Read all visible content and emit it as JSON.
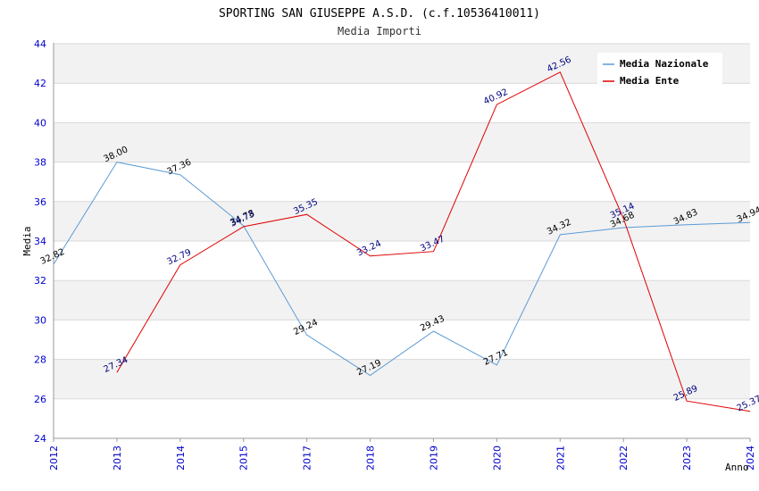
{
  "colors": {
    "nazionale": "#5b9bd5",
    "ente": "#e00000",
    "label_nazionale": "#000000",
    "label_ente": "#000080",
    "band": "#f2f2f2",
    "grid": "#d9d9d9",
    "tick": "#0000cc"
  },
  "chart_data": {
    "type": "line",
    "title": "SPORTING SAN GIUSEPPE A.S.D. (c.f.10536410011)",
    "subtitle": "Media Importi",
    "xlabel": "Anno",
    "ylabel": "Media",
    "ylim": [
      24,
      44
    ],
    "yticks": [
      24,
      26,
      28,
      30,
      32,
      34,
      36,
      38,
      40,
      42,
      44
    ],
    "categories": [
      "2012",
      "2013",
      "2014",
      "2015",
      "2017",
      "2018",
      "2019",
      "2020",
      "2021",
      "2022",
      "2023",
      "2024"
    ],
    "grid": true,
    "legend": "top-right",
    "series": [
      {
        "name": "Media Nazionale",
        "values": [
          32.82,
          38.0,
          37.36,
          34.78,
          29.24,
          27.19,
          29.43,
          27.71,
          34.32,
          34.68,
          34.83,
          34.94
        ],
        "labels": [
          "32.82",
          "38.00",
          "37.36",
          "34.78",
          "29.24",
          "27.19",
          "29.43",
          "27.71",
          "34.32",
          "34.68",
          "34.83",
          "34.94"
        ]
      },
      {
        "name": "Media Ente",
        "values": [
          null,
          27.34,
          32.79,
          34.73,
          35.35,
          33.24,
          33.47,
          40.92,
          42.56,
          35.14,
          25.89,
          25.37
        ],
        "labels": [
          null,
          "27.34",
          "32.79",
          "34.73",
          "35.35",
          "33.24",
          "33.47",
          "40.92",
          "42.56",
          "35.14",
          "25.89",
          "25.37"
        ]
      }
    ]
  }
}
